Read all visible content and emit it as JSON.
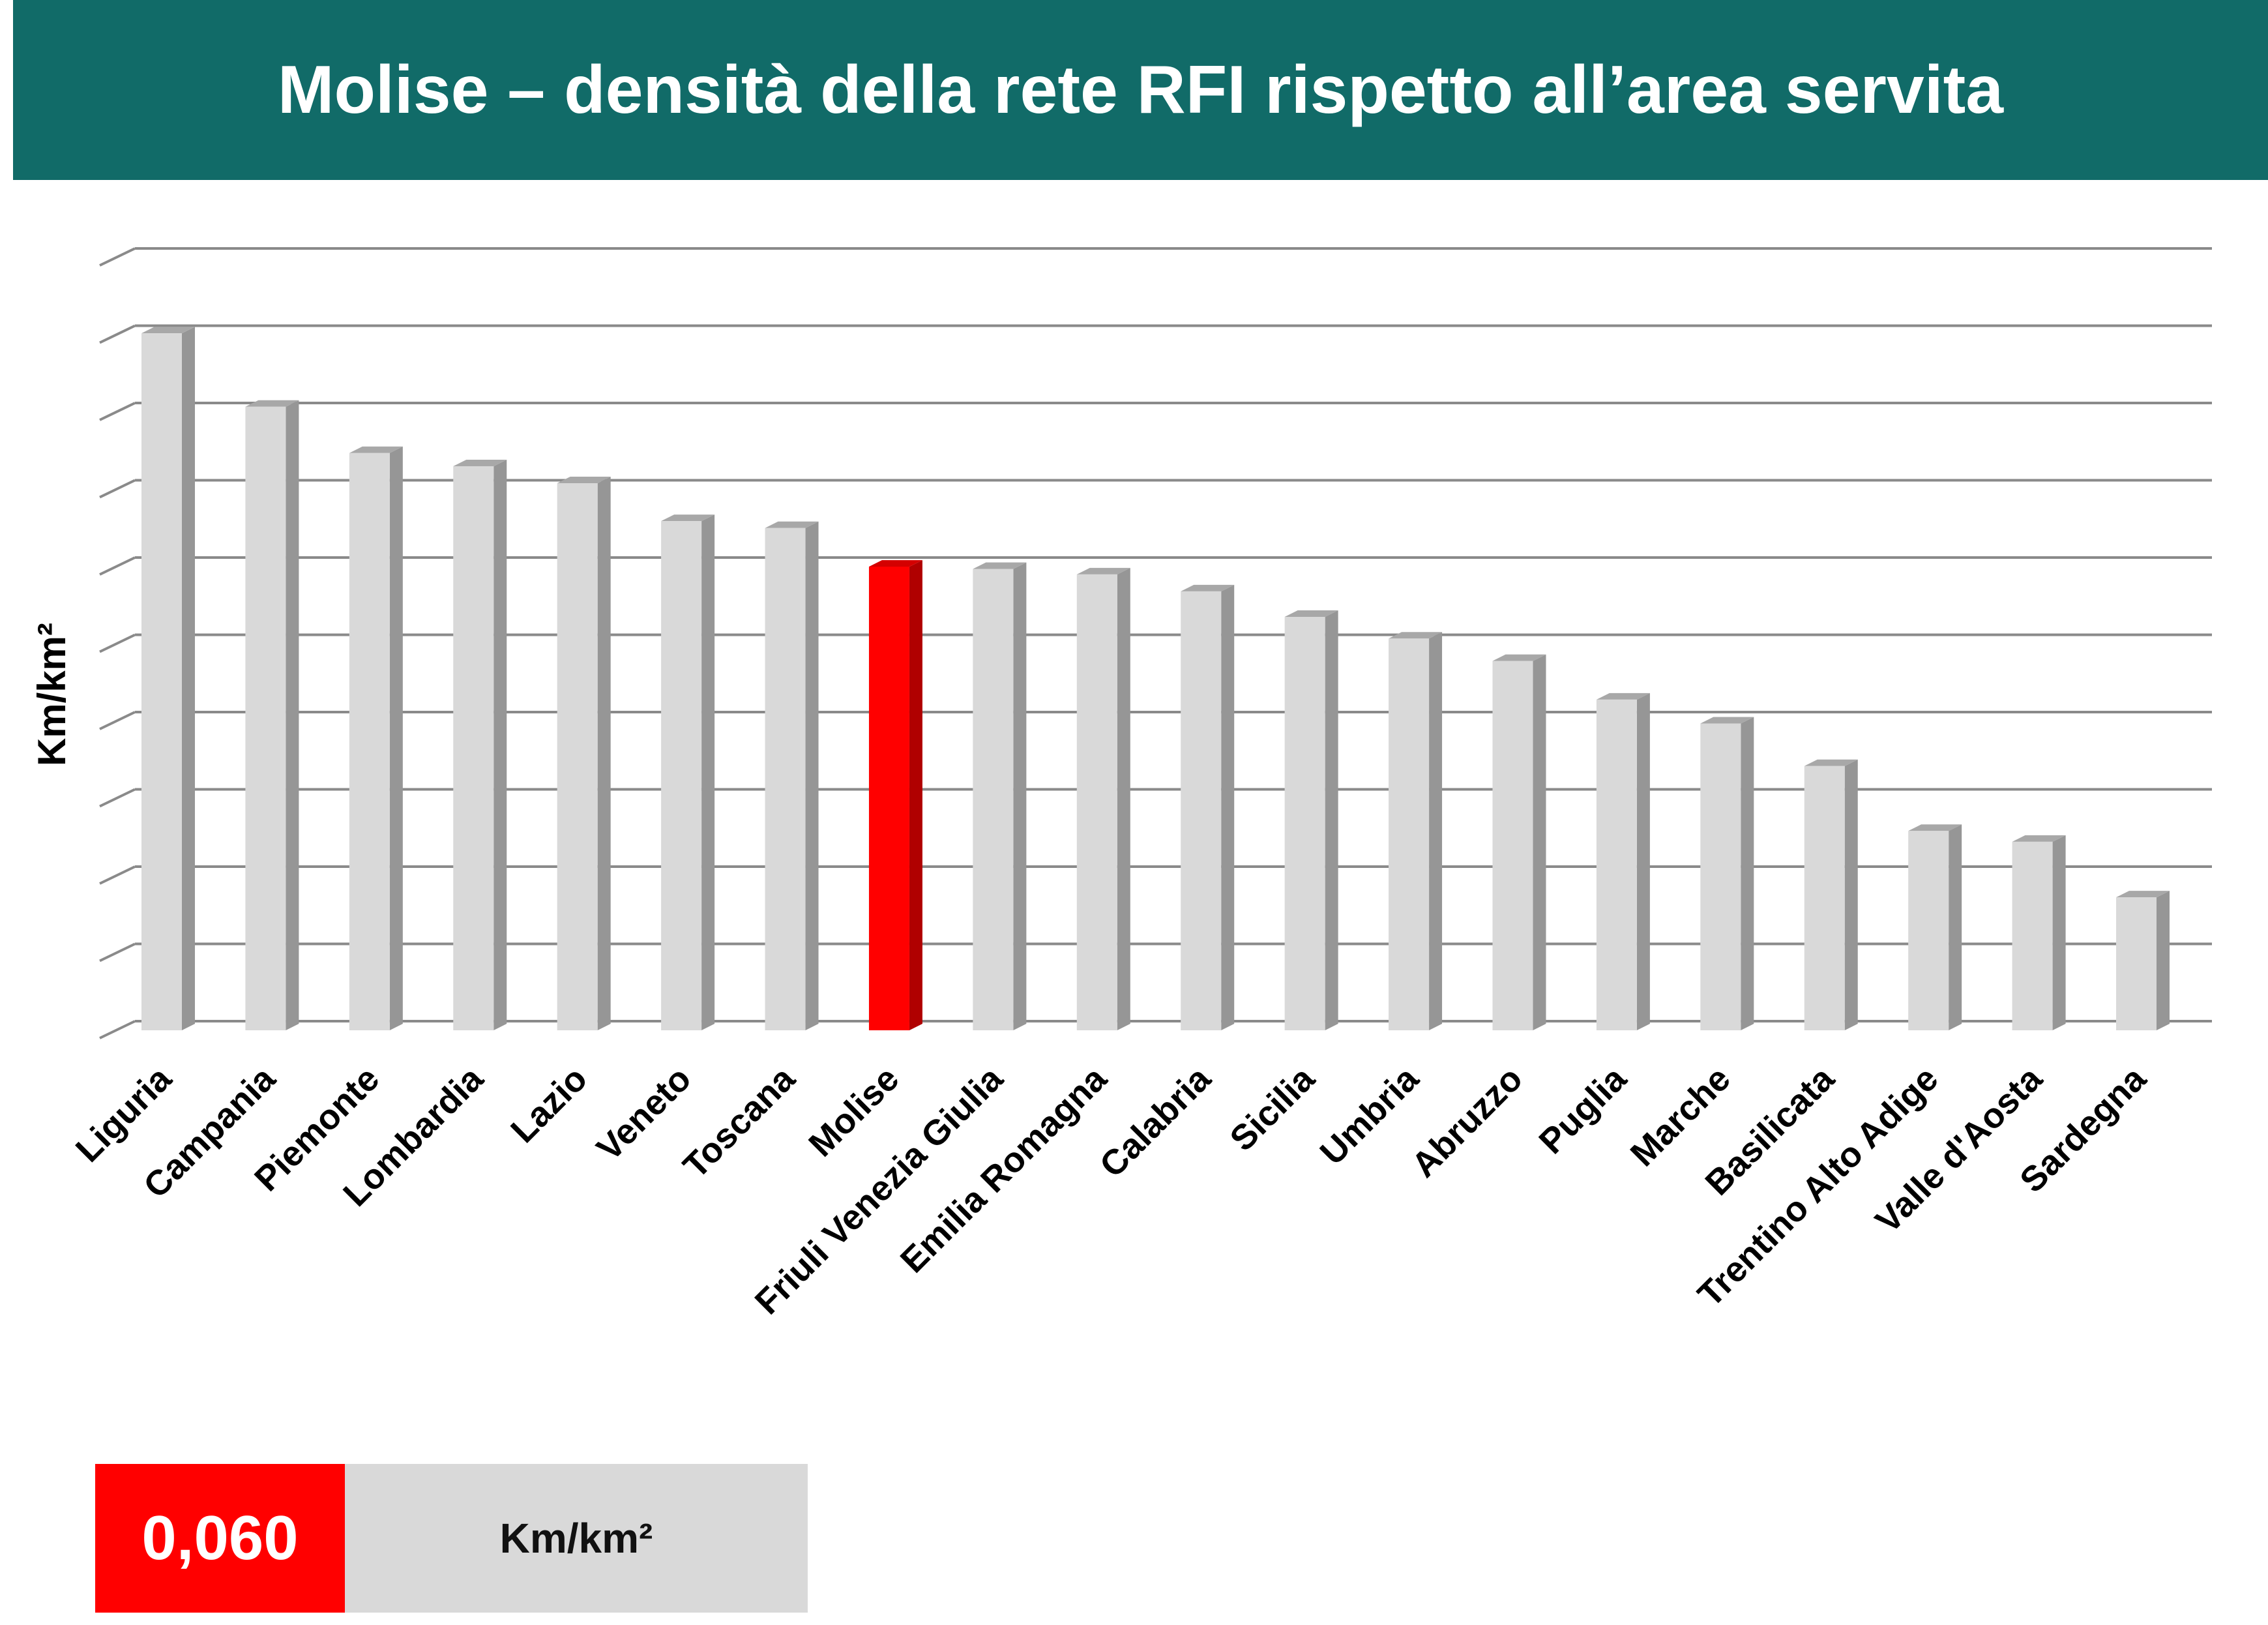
{
  "header": {
    "title": "Molise – densità della rete RFI rispetto all’area servita"
  },
  "colors": {
    "header_bg": "#116b68",
    "bar_face": "#d9d9d9",
    "bar_side": "#969696",
    "highlight_face": "#ff0000",
    "highlight_side": "#b00000",
    "gridline": "#8a8a8a"
  },
  "chart_data": {
    "type": "bar",
    "style": "3d-columns",
    "title": "",
    "xlabel": "",
    "ylabel": "Km/km²",
    "ylim": [
      0,
      0.1
    ],
    "grid": true,
    "y_tick_labels_shown": false,
    "highlight": "Molise",
    "categories": [
      "Liguria",
      "Campania",
      "Piemonte",
      "Lombardia",
      "Lazio",
      "Veneto",
      "Toscana",
      "Molise",
      "Friuli Venezia Giulia",
      "Emilia Romagna",
      "Calabria",
      "Sicilia",
      "Umbria",
      "Abruzzo",
      "Puglia",
      "Marche",
      "Basilicata",
      "Trentino Alto Adige",
      "Valle d'Aosta",
      "Sardegna"
    ],
    "values": [
      0.0902,
      0.0807,
      0.0747,
      0.073,
      0.0708,
      0.0659,
      0.065,
      0.06,
      0.0597,
      0.059,
      0.0568,
      0.0535,
      0.0507,
      0.0478,
      0.0428,
      0.0397,
      0.0342,
      0.0258,
      0.0244,
      0.0172
    ]
  },
  "callout": {
    "value": "0,060",
    "unit": "Km/km²"
  }
}
